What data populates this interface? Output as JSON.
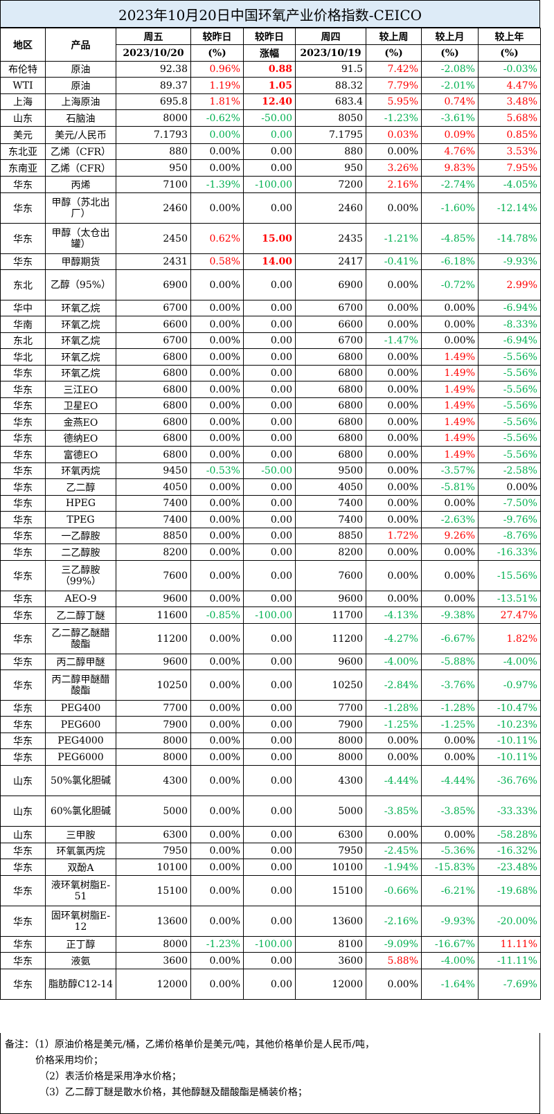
{
  "title": "2023年10月20日中国环氧产业价格指数-CEICO",
  "header": {
    "region": "地区",
    "product": "产品",
    "fri": "周五",
    "fri_date": "2023/10/20",
    "vs_yesterday": "较昨日",
    "vs_yesterday_unit": "(%)",
    "vs_yesterday2": "较昨日",
    "vs_yesterday2_sub": "涨幅",
    "thu": "周四",
    "thu_date": "2023/10/19",
    "vs_week": "较上周",
    "vs_week_unit": "(%)",
    "vs_month": "较上月",
    "vs_month_unit": "(%)",
    "vs_year": "较上年",
    "vs_year_unit": "(%)"
  },
  "rows": [
    {
      "region": "布伦特",
      "product": "原油",
      "fri": "92.38",
      "d": "0.96%",
      "dc": "red",
      "amt": "0.88",
      "ac": "red bold",
      "thu": "91.5",
      "w": "7.42%",
      "wc": "red",
      "m": "-2.08%",
      "mc": "green",
      "y": "-0.03%",
      "yc": "green",
      "h": 23
    },
    {
      "region": "WTI",
      "product": "原油",
      "fri": "89.37",
      "d": "1.19%",
      "dc": "red",
      "amt": "1.05",
      "ac": "red bold",
      "thu": "88.32",
      "w": "7.79%",
      "wc": "red",
      "m": "-2.01%",
      "mc": "green",
      "y": "4.47%",
      "yc": "red",
      "h": 24
    },
    {
      "region": "上海",
      "product": "上海原油",
      "fri": "695.8",
      "d": "1.81%",
      "dc": "red",
      "amt": "12.40",
      "ac": "red bold",
      "thu": "683.4",
      "w": "5.95%",
      "wc": "red",
      "m": "0.74%",
      "mc": "red",
      "y": "3.48%",
      "yc": "red",
      "h": 23
    },
    {
      "region": "山东",
      "product": "石脑油",
      "fri": "8000",
      "d": "-0.62%",
      "dc": "green",
      "amt": "-50.00",
      "ac": "green",
      "thu": "8050",
      "w": "-1.23%",
      "wc": "green",
      "m": "-3.61%",
      "mc": "green",
      "y": "5.68%",
      "yc": "red",
      "h": 24
    },
    {
      "region": "美元",
      "product": "美元/人民币",
      "fri": "7.1793",
      "d": "0.00%",
      "dc": "green",
      "amt": "0.00",
      "ac": "green",
      "thu": "7.1795",
      "w": "0.03%",
      "wc": "red",
      "m": "0.09%",
      "mc": "red",
      "y": "0.85%",
      "yc": "red",
      "h": 25
    },
    {
      "region": "东北亚",
      "product": "乙烯（CFR）",
      "fri": "880",
      "d": "0.00%",
      "dc": "",
      "amt": "0.00",
      "ac": "",
      "thu": "880",
      "w": "0.00%",
      "wc": "",
      "m": "4.76%",
      "mc": "red",
      "y": "3.53%",
      "yc": "red",
      "h": 23
    },
    {
      "region": "东南亚",
      "product": "乙烯（CFR）",
      "fri": "950",
      "d": "0.00%",
      "dc": "",
      "amt": "0.00",
      "ac": "",
      "thu": "950",
      "w": "3.26%",
      "wc": "red",
      "m": "9.83%",
      "mc": "red",
      "y": "7.95%",
      "yc": "red",
      "h": 24
    },
    {
      "region": "华东",
      "product": "丙烯",
      "fri": "7100",
      "d": "-1.39%",
      "dc": "green",
      "amt": "-100.00",
      "ac": "green",
      "thu": "7200",
      "w": "2.16%",
      "wc": "red",
      "m": "-2.74%",
      "mc": "green",
      "y": "-4.05%",
      "yc": "green",
      "h": 24
    },
    {
      "region": "华东",
      "product": "甲醇（苏北出厂）",
      "fri": "2460",
      "d": "0.00%",
      "dc": "",
      "amt": "0.00",
      "ac": "",
      "thu": "2460",
      "w": "0.00%",
      "wc": "",
      "m": "-1.60%",
      "mc": "green",
      "y": "-12.14%",
      "yc": "green",
      "h": 44
    },
    {
      "region": "华东",
      "product": "甲醇（太仓出罐）",
      "fri": "2450",
      "d": "0.62%",
      "dc": "red",
      "amt": "15.00",
      "ac": "red bold",
      "thu": "2435",
      "w": "-1.21%",
      "wc": "green",
      "m": "-4.85%",
      "mc": "green",
      "y": "-14.78%",
      "yc": "green",
      "h": 44
    },
    {
      "region": "华东",
      "product": "甲醇期货",
      "fri": "2431",
      "d": "0.58%",
      "dc": "red",
      "amt": "14.00",
      "ac": "red bold",
      "thu": "2417",
      "w": "-0.41%",
      "wc": "green",
      "m": "-6.18%",
      "mc": "green",
      "y": "-9.93%",
      "yc": "green",
      "h": 23
    },
    {
      "region": "东北",
      "product": "乙醇（95%）",
      "fri": "6900",
      "d": "0.00%",
      "dc": "",
      "amt": "0.00",
      "ac": "",
      "thu": "6900",
      "w": "0.00%",
      "wc": "",
      "m": "-0.72%",
      "mc": "green",
      "y": "2.99%",
      "yc": "red",
      "h": 44
    },
    {
      "region": "华中",
      "product": "环氧乙烷",
      "fri": "6700",
      "d": "0.00%",
      "dc": "",
      "amt": "0.00",
      "ac": "",
      "thu": "6700",
      "w": "0.00%",
      "wc": "",
      "m": "0.00%",
      "mc": "",
      "y": "-6.94%",
      "yc": "green",
      "h": 23
    },
    {
      "region": "华南",
      "product": "环氧乙烷",
      "fri": "6600",
      "d": "0.00%",
      "dc": "",
      "amt": "0.00",
      "ac": "",
      "thu": "6600",
      "w": "0.00%",
      "wc": "",
      "m": "0.00%",
      "mc": "",
      "y": "-8.33%",
      "yc": "green",
      "h": 24
    },
    {
      "region": "东北",
      "product": "环氧乙烷",
      "fri": "6700",
      "d": "0.00%",
      "dc": "",
      "amt": "0.00",
      "ac": "",
      "thu": "6700",
      "w": "-1.47%",
      "wc": "green",
      "m": "0.00%",
      "mc": "",
      "y": "-6.94%",
      "yc": "green",
      "h": 23
    },
    {
      "region": "华北",
      "product": "环氧乙烷",
      "fri": "6800",
      "d": "0.00%",
      "dc": "",
      "amt": "0.00",
      "ac": "",
      "thu": "6800",
      "w": "0.00%",
      "wc": "",
      "m": "1.49%",
      "mc": "red",
      "y": "-5.56%",
      "yc": "green",
      "h": 24
    },
    {
      "region": "华东",
      "product": "环氧乙烷",
      "fri": "6800",
      "d": "0.00%",
      "dc": "",
      "amt": "0.00",
      "ac": "",
      "thu": "6800",
      "w": "0.00%",
      "wc": "",
      "m": "1.49%",
      "mc": "red",
      "y": "-5.56%",
      "yc": "green",
      "h": 23
    },
    {
      "region": "华东",
      "product": "三江EO",
      "fri": "6800",
      "d": "0.00%",
      "dc": "",
      "amt": "0.00",
      "ac": "",
      "thu": "6800",
      "w": "0.00%",
      "wc": "",
      "m": "1.49%",
      "mc": "red",
      "y": "-5.56%",
      "yc": "green",
      "h": 24
    },
    {
      "region": "华东",
      "product": "卫星EO",
      "fri": "6800",
      "d": "0.00%",
      "dc": "",
      "amt": "0.00",
      "ac": "",
      "thu": "6800",
      "w": "0.00%",
      "wc": "",
      "m": "1.49%",
      "mc": "red",
      "y": "-5.56%",
      "yc": "green",
      "h": 23
    },
    {
      "region": "华东",
      "product": "金燕EO",
      "fri": "6800",
      "d": "0.00%",
      "dc": "",
      "amt": "0.00",
      "ac": "",
      "thu": "6800",
      "w": "0.00%",
      "wc": "",
      "m": "1.49%",
      "mc": "red",
      "y": "-5.56%",
      "yc": "green",
      "h": 24
    },
    {
      "region": "华东",
      "product": "德纳EO",
      "fri": "6800",
      "d": "0.00%",
      "dc": "",
      "amt": "0.00",
      "ac": "",
      "thu": "6800",
      "w": "0.00%",
      "wc": "",
      "m": "1.49%",
      "mc": "red",
      "y": "-5.56%",
      "yc": "green",
      "h": 23
    },
    {
      "region": "华东",
      "product": "富德EO",
      "fri": "6800",
      "d": "0.00%",
      "dc": "",
      "amt": "0.00",
      "ac": "",
      "thu": "6800",
      "w": "0.00%",
      "wc": "",
      "m": "1.49%",
      "mc": "red",
      "y": "-5.56%",
      "yc": "green",
      "h": 24
    },
    {
      "region": "华东",
      "product": "环氧丙烷",
      "fri": "9450",
      "d": "-0.53%",
      "dc": "green",
      "amt": "-50.00",
      "ac": "green",
      "thu": "9500",
      "w": "0.00%",
      "wc": "",
      "m": "-3.57%",
      "mc": "green",
      "y": "-2.58%",
      "yc": "green",
      "h": 23
    },
    {
      "region": "华东",
      "product": "乙二醇",
      "fri": "4050",
      "d": "0.00%",
      "dc": "",
      "amt": "0.00",
      "ac": "",
      "thu": "4050",
      "w": "0.00%",
      "wc": "",
      "m": "-5.81%",
      "mc": "green",
      "y": "0.00%",
      "yc": "",
      "h": 24
    },
    {
      "region": "华东",
      "product": "HPEG",
      "fri": "7400",
      "d": "0.00%",
      "dc": "",
      "amt": "0.00",
      "ac": "",
      "thu": "7400",
      "w": "0.00%",
      "wc": "",
      "m": "0.00%",
      "mc": "",
      "y": "-7.50%",
      "yc": "green",
      "h": 23
    },
    {
      "region": "华东",
      "product": "TPEG",
      "fri": "7400",
      "d": "0.00%",
      "dc": "",
      "amt": "0.00",
      "ac": "",
      "thu": "7400",
      "w": "0.00%",
      "wc": "",
      "m": "-2.63%",
      "mc": "green",
      "y": "-9.76%",
      "yc": "green",
      "h": 24
    },
    {
      "region": "华东",
      "product": "一乙醇胺",
      "fri": "8850",
      "d": "0.00%",
      "dc": "",
      "amt": "0.00",
      "ac": "",
      "thu": "8850",
      "w": "1.72%",
      "wc": "red",
      "m": "9.26%",
      "mc": "red",
      "y": "-8.76%",
      "yc": "green",
      "h": 23
    },
    {
      "region": "华东",
      "product": "二乙醇胺",
      "fri": "8200",
      "d": "0.00%",
      "dc": "",
      "amt": "0.00",
      "ac": "",
      "thu": "8200",
      "w": "0.00%",
      "wc": "",
      "m": "0.00%",
      "mc": "",
      "y": "-16.33%",
      "yc": "green",
      "h": 24
    },
    {
      "region": "华东",
      "product": "三乙醇胺（99%）",
      "fri": "7600",
      "d": "0.00%",
      "dc": "",
      "amt": "0.00",
      "ac": "",
      "thu": "7600",
      "w": "0.00%",
      "wc": "",
      "m": "0.00%",
      "mc": "",
      "y": "-15.56%",
      "yc": "green",
      "h": 44
    },
    {
      "region": "华东",
      "product": "AEO-9",
      "fri": "9600",
      "d": "0.00%",
      "dc": "",
      "amt": "0.00",
      "ac": "",
      "thu": "9600",
      "w": "0.00%",
      "wc": "",
      "m": "0.00%",
      "mc": "",
      "y": "-13.51%",
      "yc": "green",
      "h": 23
    },
    {
      "region": "华东",
      "product": "乙二醇丁醚",
      "fri": "11600",
      "d": "-0.85%",
      "dc": "green",
      "amt": "-100.00",
      "ac": "green",
      "thu": "11700",
      "w": "-4.13%",
      "wc": "green",
      "m": "-9.38%",
      "mc": "green",
      "y": "27.47%",
      "yc": "red",
      "h": 24
    },
    {
      "region": "华东",
      "product": "乙二醇乙醚醋酸酯",
      "fri": "11200",
      "d": "0.00%",
      "dc": "",
      "amt": "0.00",
      "ac": "",
      "thu": "11200",
      "w": "-4.27%",
      "wc": "green",
      "m": "-6.67%",
      "mc": "green",
      "y": "1.82%",
      "yc": "red",
      "h": 44
    },
    {
      "region": "华东",
      "product": "丙二醇甲醚",
      "fri": "9600",
      "d": "0.00%",
      "dc": "",
      "amt": "0.00",
      "ac": "",
      "thu": "9600",
      "w": "-4.00%",
      "wc": "green",
      "m": "-5.88%",
      "mc": "green",
      "y": "-4.00%",
      "yc": "green",
      "h": 23
    },
    {
      "region": "华东",
      "product": "丙二醇甲醚醋酸酯",
      "fri": "10250",
      "d": "0.00%",
      "dc": "",
      "amt": "0.00",
      "ac": "",
      "thu": "10250",
      "w": "-2.84%",
      "wc": "green",
      "m": "-3.76%",
      "mc": "green",
      "y": "-0.97%",
      "yc": "green",
      "h": 44
    },
    {
      "region": "华东",
      "product": "PEG400",
      "fri": "7700",
      "d": "0.00%",
      "dc": "",
      "amt": "0.00",
      "ac": "",
      "thu": "7700",
      "w": "-1.28%",
      "wc": "green",
      "m": "-1.28%",
      "mc": "green",
      "y": "-10.47%",
      "yc": "green",
      "h": 23
    },
    {
      "region": "华东",
      "product": "PEG600",
      "fri": "7900",
      "d": "0.00%",
      "dc": "",
      "amt": "0.00",
      "ac": "",
      "thu": "7900",
      "w": "-1.25%",
      "wc": "green",
      "m": "-1.25%",
      "mc": "green",
      "y": "-10.23%",
      "yc": "green",
      "h": 24
    },
    {
      "region": "华东",
      "product": "PEG4000",
      "fri": "8000",
      "d": "0.00%",
      "dc": "",
      "amt": "0.00",
      "ac": "",
      "thu": "8000",
      "w": "0.00%",
      "wc": "",
      "m": "0.00%",
      "mc": "",
      "y": "-10.11%",
      "yc": "green",
      "h": 23
    },
    {
      "region": "华东",
      "product": "PEG6000",
      "fri": "8000",
      "d": "0.00%",
      "dc": "",
      "amt": "0.00",
      "ac": "",
      "thu": "8000",
      "w": "0.00%",
      "wc": "",
      "m": "0.00%",
      "mc": "",
      "y": "-10.11%",
      "yc": "green",
      "h": 24
    },
    {
      "region": "山东",
      "product": "50%氯化胆碱",
      "fri": "4300",
      "d": "0.00%",
      "dc": "",
      "amt": "0.00",
      "ac": "",
      "thu": "4300",
      "w": "-4.44%",
      "wc": "green",
      "m": "-4.44%",
      "mc": "green",
      "y": "-36.76%",
      "yc": "green",
      "h": 44
    },
    {
      "region": "山东",
      "product": "60%氯化胆碱",
      "fri": "5000",
      "d": "0.00%",
      "dc": "",
      "amt": "0.00",
      "ac": "",
      "thu": "5000",
      "w": "-3.85%",
      "wc": "green",
      "m": "-3.85%",
      "mc": "green",
      "y": "-33.33%",
      "yc": "green",
      "h": 44
    },
    {
      "region": "山东",
      "product": "三甲胺",
      "fri": "6300",
      "d": "0.00%",
      "dc": "",
      "amt": "0.00",
      "ac": "",
      "thu": "6300",
      "w": "0.00%",
      "wc": "",
      "m": "0.00%",
      "mc": "",
      "y": "-58.28%",
      "yc": "green",
      "h": 24
    },
    {
      "region": "华东",
      "product": "环氧氯丙烷",
      "fri": "7950",
      "d": "0.00%",
      "dc": "",
      "amt": "0.00",
      "ac": "",
      "thu": "7950",
      "w": "-2.45%",
      "wc": "green",
      "m": "-5.36%",
      "mc": "green",
      "y": "-16.32%",
      "yc": "green",
      "h": 23
    },
    {
      "region": "华东",
      "product": "双酚A",
      "fri": "10100",
      "d": "0.00%",
      "dc": "",
      "amt": "0.00",
      "ac": "",
      "thu": "10100",
      "w": "-1.94%",
      "wc": "green",
      "m": "-15.83%",
      "mc": "green",
      "y": "-23.48%",
      "yc": "green",
      "h": 24
    },
    {
      "region": "华东",
      "product": "液环氧树脂E-51",
      "fri": "15100",
      "d": "0.00%",
      "dc": "",
      "amt": "0.00",
      "ac": "",
      "thu": "15100",
      "w": "-0.66%",
      "wc": "green",
      "m": "-6.21%",
      "mc": "green",
      "y": "-19.68%",
      "yc": "green",
      "h": 44
    },
    {
      "region": "华东",
      "product": "固环氧树脂E-12",
      "fri": "13600",
      "d": "0.00%",
      "dc": "",
      "amt": "0.00",
      "ac": "",
      "thu": "13600",
      "w": "-2.16%",
      "wc": "green",
      "m": "-9.93%",
      "mc": "green",
      "y": "-20.00%",
      "yc": "green",
      "h": 44
    },
    {
      "region": "华东",
      "product": "正丁醇",
      "fri": "8000",
      "d": "-1.23%",
      "dc": "green",
      "amt": "-100.00",
      "ac": "green",
      "thu": "8100",
      "w": "-9.09%",
      "wc": "green",
      "m": "-16.67%",
      "mc": "green",
      "y": "11.11%",
      "yc": "red",
      "h": 23
    },
    {
      "region": "华东",
      "product": "液氨",
      "fri": "3600",
      "d": "0.00%",
      "dc": "",
      "amt": "0.00",
      "ac": "",
      "thu": "3600",
      "w": "5.88%",
      "wc": "red",
      "m": "-4.00%",
      "mc": "green",
      "y": "-11.11%",
      "yc": "green",
      "h": 24
    },
    {
      "region": "华东",
      "product": "脂肪醇C12-14",
      "fri": "12000",
      "d": "0.00%",
      "dc": "",
      "amt": "0.00",
      "ac": "",
      "thu": "12000",
      "w": "0.00%",
      "wc": "",
      "m": "-1.64%",
      "mc": "green",
      "y": "-7.69%",
      "yc": "green",
      "h": 44
    }
  ],
  "notes": {
    "line1": "备注：（1）原油价格是美元/桶，乙烯价格单价是美元/吨，其他价格单价是人民币/吨，",
    "line2": "价格采用均价；",
    "line3": "（2）表活价格是采用净水价格；",
    "line4": "（3）乙二醇丁醚是散水价格，其他醇醚及醋酸酯是桶装价格；"
  },
  "colors": {
    "red": "#ff0000",
    "green": "#00b050",
    "header_bg": "#ddebf7"
  }
}
